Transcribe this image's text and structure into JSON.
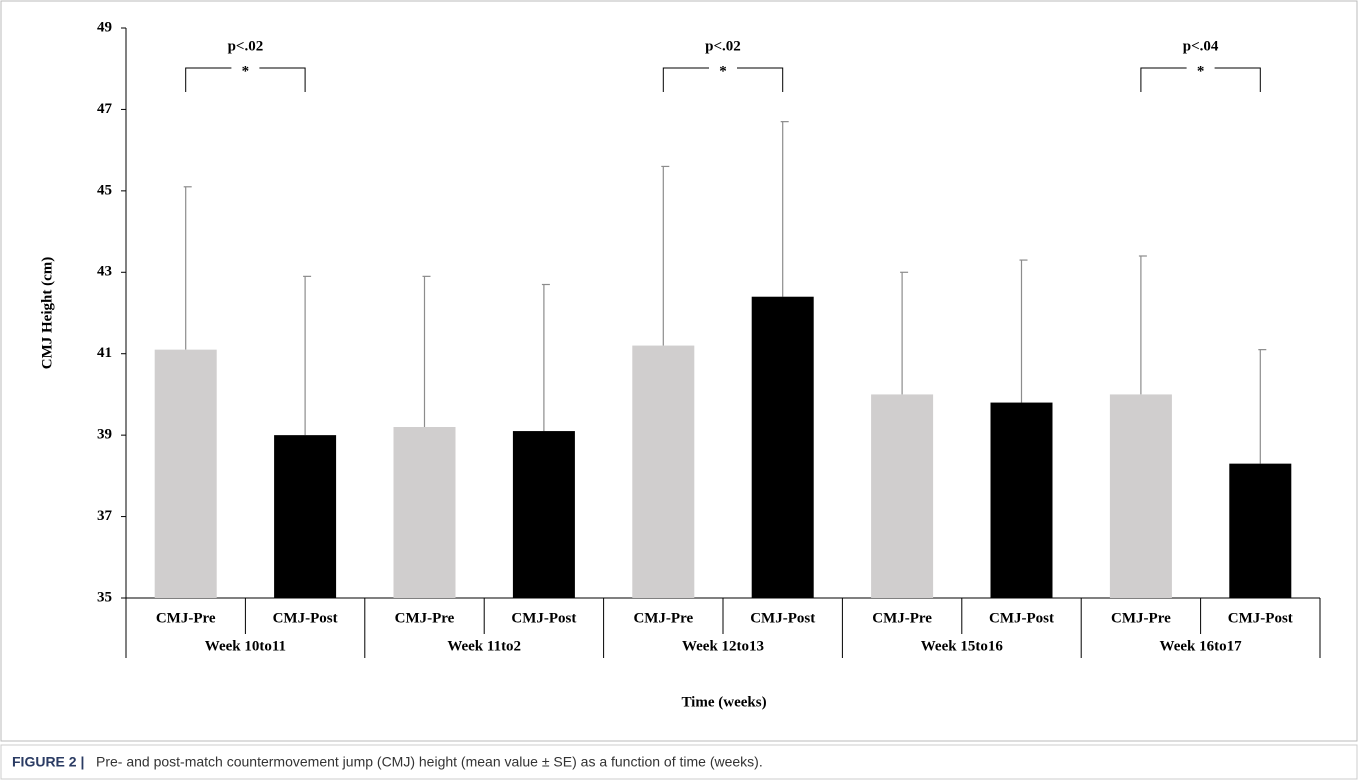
{
  "chart_data": {
    "type": "bar",
    "y_label": "CMJ  Height (cm)",
    "x_label": "Time (weeks)",
    "categories": [
      "Week 10to11",
      "Week 11to2",
      "Week 12to13",
      "Week 15to16",
      "Week 16to17"
    ],
    "series": [
      {
        "name": "CMJ-Pre",
        "color": "#d0cece",
        "values": [
          41.1,
          39.2,
          41.2,
          40.0,
          40.0
        ],
        "errors": [
          4.0,
          3.7,
          4.4,
          3.0,
          3.4
        ]
      },
      {
        "name": "CMJ-Post",
        "color": "#000000",
        "values": [
          39.0,
          39.1,
          42.4,
          39.8,
          38.3
        ],
        "errors": [
          3.9,
          3.6,
          4.3,
          3.5,
          2.8
        ]
      }
    ],
    "ylim": [
      35,
      49
    ],
    "yticks": [
      35,
      37,
      39,
      41,
      43,
      45,
      47,
      49
    ],
    "error_color": "#8c8c8c",
    "annotations": [
      {
        "category": "Week 10to11",
        "text": "p<.02",
        "marker": "*"
      },
      {
        "category": "Week 12to13",
        "text": "p<.02",
        "marker": "*"
      },
      {
        "category": "Week 16to17",
        "text": "p<.04",
        "marker": "*"
      }
    ],
    "caption_label": "FIGURE 2 |",
    "caption": "Pre- and post-match countermovement jump (CMJ) height (mean value ± SE) as a function of time (weeks)."
  }
}
